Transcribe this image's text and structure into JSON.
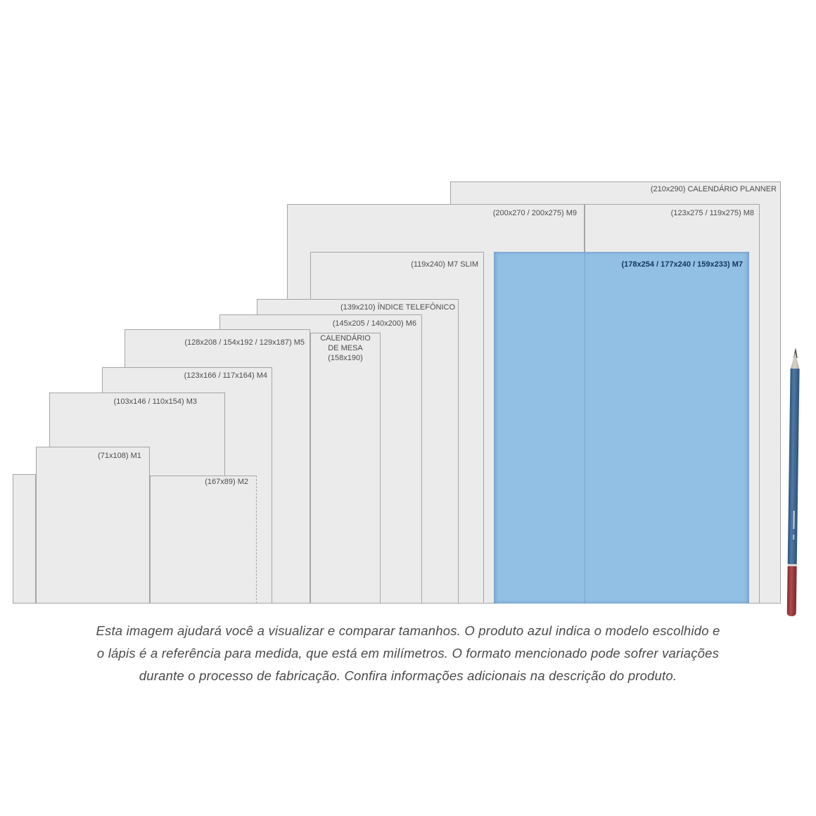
{
  "colors": {
    "highlight": "#92bfe4",
    "highlight_label": "#17355e",
    "rect_fill": "#ebebeb",
    "rect_border": "#a5a5a5",
    "label_color": "#4d4d4d",
    "pencil_body": "#3f6590",
    "pencil_end": "#9e3a3e"
  },
  "sizes": {
    "planner": {
      "label": "(210x290) CALENDÁRIO PLANNER"
    },
    "m9": {
      "label": "(200x270 / 200x275) M9"
    },
    "m8": {
      "label": "(123x275 / 119x275) M8"
    },
    "m7slim": {
      "label": "(119x240) M7 SLIM"
    },
    "m7": {
      "label": "(178x254 / 177x240 / 159x233) M7"
    },
    "indice": {
      "label": "(139x210) ÍNDICE TELEFÔNICO"
    },
    "m6": {
      "label": "(145x205 / 140x200) M6"
    },
    "mesa": {
      "line1": "CALENDÁRIO",
      "line2": "DE MESA",
      "line3": "(158x190)"
    },
    "m5": {
      "label": "(128x208 / 154x192 / 129x187) M5"
    },
    "m4": {
      "label": "(123x166 / 117x164) M4"
    },
    "m3": {
      "label": "(103x146 / 110x154) M3"
    },
    "m2": {
      "label": "(167x89) M2"
    },
    "m1": {
      "label": "(71x108) M1"
    }
  },
  "caption": {
    "line1": "Esta imagem ajudará você a visualizar e comparar tamanhos. O produto azul indica o modelo escolhido e",
    "line2": "o lápis é a referência para medida, que está em milímetros. O formato mencionado pode sofrer variações",
    "line3": "durante o processo de fabricação. Confira informações adicionais na descrição do produto."
  }
}
